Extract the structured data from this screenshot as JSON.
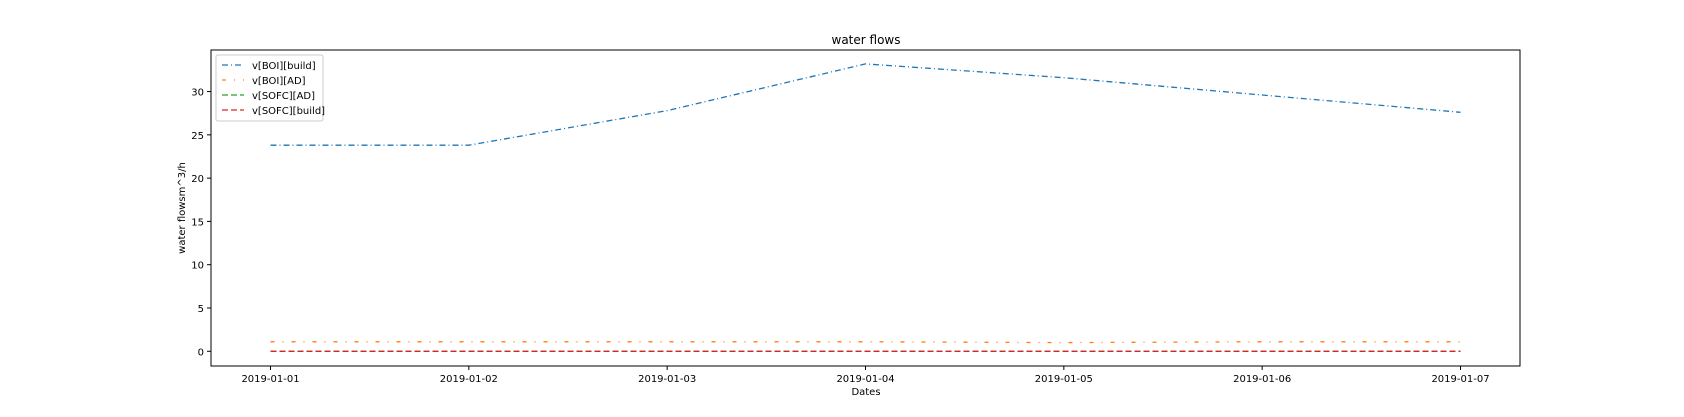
{
  "chart_data": {
    "type": "line",
    "title": "water flows",
    "xlabel": "Dates",
    "ylabel": "water flowsm^3/h",
    "x": [
      "2019-01-01",
      "2019-01-02",
      "2019-01-03",
      "2019-01-04",
      "2019-01-05",
      "2019-01-06",
      "2019-01-07"
    ],
    "xlim": [
      -0.3,
      6.3
    ],
    "ylim": [
      -1.7,
      34.8
    ],
    "yticks": [
      0,
      5,
      10,
      15,
      20,
      25,
      30
    ],
    "grid": false,
    "legend_position": "top-left",
    "series": [
      {
        "name": "v[BOI][build]",
        "color": "#1f77b4",
        "dash": "dashdot",
        "values": [
          23.8,
          23.8,
          27.8,
          33.2,
          31.6,
          29.6,
          27.6
        ]
      },
      {
        "name": "v[BOI][AD]",
        "color": "#ff7f0e",
        "dash": "sparse-dashdot",
        "values": [
          1.1,
          1.1,
          1.1,
          1.1,
          1.0,
          1.1,
          1.1
        ]
      },
      {
        "name": "v[SOFC][AD]",
        "color": "#2ca02c",
        "dash": "dashed",
        "values": [
          0,
          0,
          0,
          0,
          0,
          0,
          0
        ]
      },
      {
        "name": "v[SOFC][build]",
        "color": "#d62728",
        "dash": "dashed",
        "values": [
          0,
          0,
          0,
          0,
          0,
          0,
          0
        ]
      }
    ]
  }
}
